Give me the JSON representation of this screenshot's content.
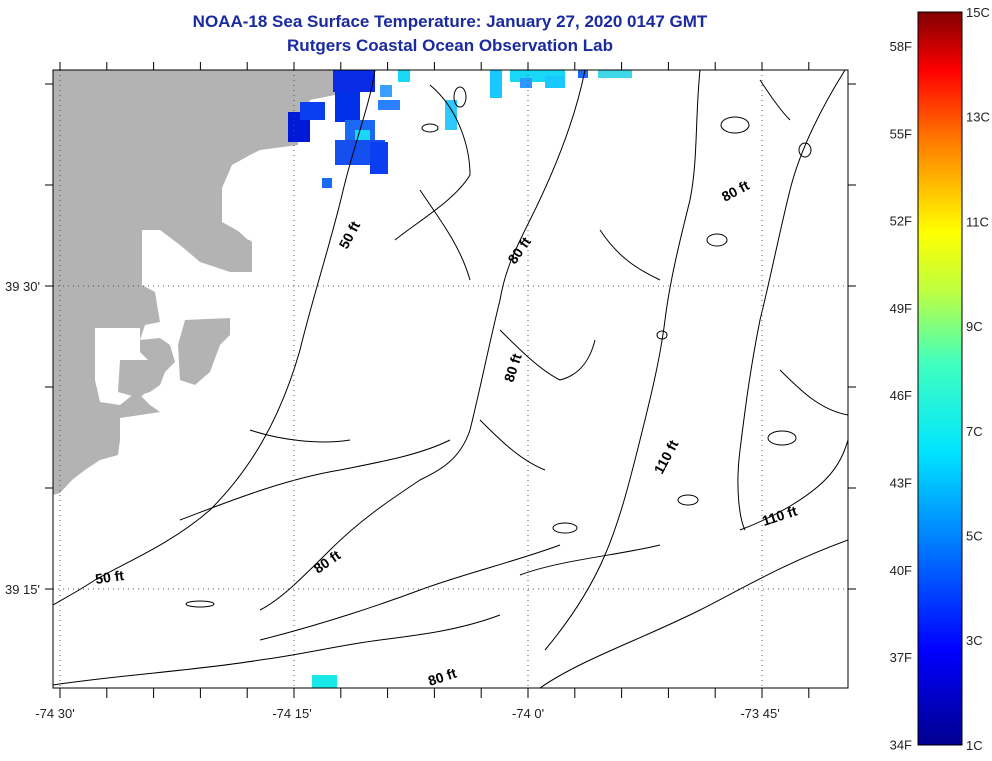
{
  "title": {
    "line1": "NOAA-18 Sea Surface Temperature:  January 27, 2020 0147 GMT",
    "line2": "Rutgers Coastal Ocean Observation Lab"
  },
  "axes": {
    "x_ticks": [
      "-74 30'",
      "-74 15'",
      "-74 0'",
      "-73 45'"
    ],
    "y_ticks": [
      "39 30'",
      "39 15'"
    ]
  },
  "contours": [
    {
      "label": "50 ft"
    },
    {
      "label": "80 ft"
    },
    {
      "label": "80 ft"
    },
    {
      "label": "80 ft"
    },
    {
      "label": "110 ft"
    },
    {
      "label": "110 ft"
    },
    {
      "label": "50 ft"
    },
    {
      "label": "80 ft"
    },
    {
      "label": "80 ft"
    }
  ],
  "colorbar": {
    "fahrenheit": [
      "58F",
      "55F",
      "52F",
      "49F",
      "46F",
      "43F",
      "40F",
      "37F",
      "34F"
    ],
    "celsius": [
      "15C",
      "13C",
      "11C",
      "9C",
      "7C",
      "5C",
      "3C",
      "1C"
    ]
  },
  "colors": {
    "land": "#b3b3b3",
    "title": "#1a2aa0"
  }
}
